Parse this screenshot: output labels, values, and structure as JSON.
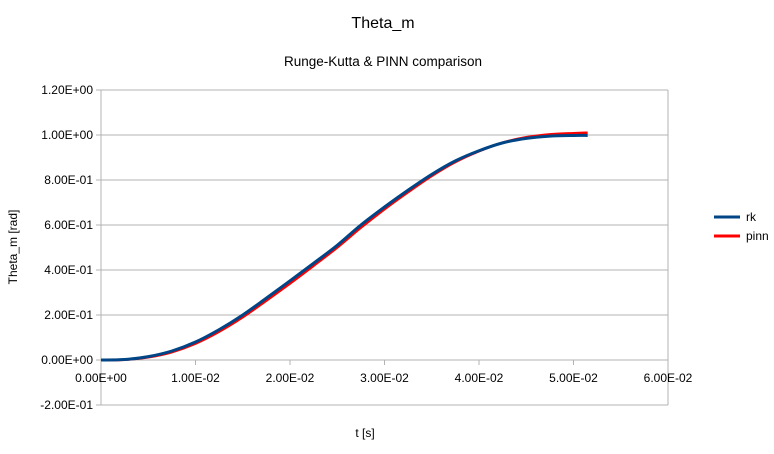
{
  "chart_data": {
    "type": "line",
    "title": "Theta_m",
    "subtitle": "Runge-Kutta & PINN comparison",
    "xlabel": "t [s]",
    "ylabel": "Theta_m [rad]",
    "xlim": [
      0,
      0.06
    ],
    "ylim": [
      -0.2,
      1.2
    ],
    "x_ticks": [
      0,
      0.01,
      0.02,
      0.03,
      0.04,
      0.05,
      0.06
    ],
    "x_tick_labels": [
      "0.00E+00",
      "1.00E-02",
      "2.00E-02",
      "3.00E-02",
      "4.00E-02",
      "5.00E-02",
      "6.00E-02"
    ],
    "y_ticks": [
      -0.2,
      0,
      0.2,
      0.4,
      0.6,
      0.8,
      1.0,
      1.2
    ],
    "y_tick_labels": [
      "-2.00E-01",
      "0.00E+00",
      "2.00E-01",
      "4.00E-01",
      "6.00E-01",
      "8.00E-01",
      "1.00E+00",
      "1.20E+00"
    ],
    "grid": "horizontal",
    "legend_position": "right",
    "series": [
      {
        "name": "rk",
        "color": "#004586",
        "x": [
          0,
          0.0025,
          0.005,
          0.0075,
          0.01,
          0.0125,
          0.015,
          0.0175,
          0.02,
          0.0225,
          0.025,
          0.0275,
          0.03,
          0.0325,
          0.035,
          0.0375,
          0.04,
          0.0425,
          0.045,
          0.0475,
          0.05,
          0.0515
        ],
        "values": [
          0,
          0.002,
          0.015,
          0.04,
          0.08,
          0.135,
          0.2,
          0.275,
          0.352,
          0.43,
          0.51,
          0.6,
          0.68,
          0.755,
          0.825,
          0.885,
          0.93,
          0.965,
          0.985,
          0.995,
          0.998,
          0.998
        ]
      },
      {
        "name": "pinn",
        "color": "#ff0000",
        "x": [
          0,
          0.0025,
          0.005,
          0.0075,
          0.01,
          0.0125,
          0.015,
          0.0175,
          0.02,
          0.0225,
          0.025,
          0.0275,
          0.03,
          0.0325,
          0.035,
          0.0375,
          0.04,
          0.0425,
          0.045,
          0.0475,
          0.05,
          0.0515
        ],
        "values": [
          0,
          0.001,
          0.012,
          0.035,
          0.073,
          0.126,
          0.19,
          0.264,
          0.34,
          0.419,
          0.5,
          0.588,
          0.67,
          0.746,
          0.818,
          0.88,
          0.928,
          0.966,
          0.99,
          1.003,
          1.008,
          1.01
        ]
      }
    ]
  }
}
